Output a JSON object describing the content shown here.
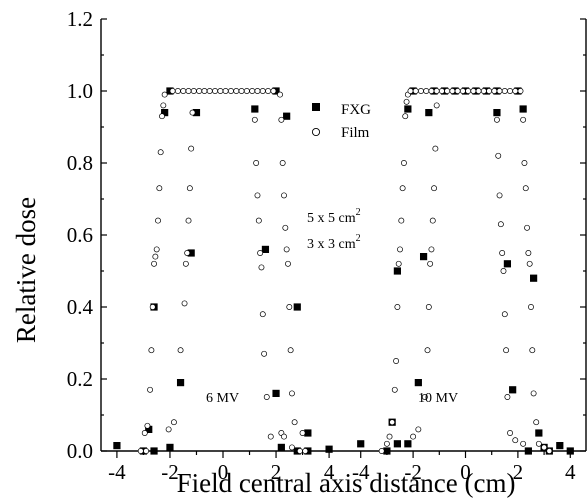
{
  "chart_data": {
    "type": "scatter",
    "xlabel": "Field central axis distance (cm)",
    "ylabel": "Relative dose",
    "ylim": [
      0.0,
      1.2
    ],
    "yticks": [
      "0.0",
      "0.2",
      "0.4",
      "0.6",
      "0.8",
      "1.0",
      "1.2"
    ],
    "yvalues": [
      0.0,
      0.2,
      0.4,
      0.6,
      0.8,
      1.0,
      1.2
    ],
    "panels": [
      {
        "label": "6 MV",
        "xlim": [
          -4.6,
          4.6
        ],
        "xticks": [
          "-4",
          "-2",
          "0",
          "2",
          "4"
        ],
        "xvalues": [
          -4,
          -2,
          0,
          2,
          4
        ],
        "series": [
          {
            "name": "FXG",
            "marker": "square",
            "points": [
              [
                -4.0,
                0.015
              ],
              [
                -3.0,
                0.0
              ],
              [
                -2.6,
                0.0
              ],
              [
                -2.0,
                0.01
              ],
              [
                -2.8,
                0.06
              ],
              [
                -2.6,
                0.4
              ],
              [
                -2.2,
                0.94
              ],
              [
                -2.0,
                1.0
              ],
              [
                -1.6,
                0.19
              ],
              [
                -1.2,
                0.55
              ],
              [
                -1.0,
                0.94
              ],
              [
                1.2,
                0.95
              ],
              [
                1.6,
                0.56
              ],
              [
                2.0,
                0.16
              ],
              [
                2.0,
                1.0
              ],
              [
                2.4,
                0.93
              ],
              [
                2.8,
                0.4
              ],
              [
                2.2,
                0.01
              ],
              [
                3.2,
                0.05
              ],
              [
                2.8,
                0.0
              ],
              [
                3.2,
                0.0
              ],
              [
                4.0,
                0.005
              ]
            ]
          },
          {
            "name": "Film",
            "marker": "circle",
            "points": [
              [
                -3.1,
                0.0
              ],
              [
                -2.9,
                0.0
              ],
              [
                -2.95,
                0.05
              ],
              [
                -2.85,
                0.07
              ],
              [
                -2.75,
                0.17
              ],
              [
                -2.7,
                0.28
              ],
              [
                -2.65,
                0.4
              ],
              [
                -2.6,
                0.52
              ],
              [
                -2.55,
                0.54
              ],
              [
                -2.5,
                0.56
              ],
              [
                -2.45,
                0.64
              ],
              [
                -2.4,
                0.73
              ],
              [
                -2.35,
                0.83
              ],
              [
                -2.3,
                0.93
              ],
              [
                -2.25,
                0.96
              ],
              [
                -2.2,
                0.99
              ],
              [
                -1.9,
                1.0
              ],
              [
                -1.7,
                1.0
              ],
              [
                -1.5,
                1.0
              ],
              [
                -1.3,
                1.0
              ],
              [
                -1.1,
                1.0
              ],
              [
                -0.9,
                1.0
              ],
              [
                -0.7,
                1.0
              ],
              [
                -0.5,
                1.0
              ],
              [
                -0.3,
                1.0
              ],
              [
                -0.1,
                1.0
              ],
              [
                0.1,
                1.0
              ],
              [
                0.3,
                1.0
              ],
              [
                0.5,
                1.0
              ],
              [
                0.7,
                1.0
              ],
              [
                0.9,
                1.0
              ],
              [
                1.1,
                1.0
              ],
              [
                1.3,
                1.0
              ],
              [
                1.5,
                1.0
              ],
              [
                1.7,
                1.0
              ],
              [
                1.9,
                1.0
              ],
              [
                -2.05,
                0.06
              ],
              [
                -1.85,
                0.08
              ],
              [
                -1.6,
                0.28
              ],
              [
                -1.45,
                0.41
              ],
              [
                -1.4,
                0.52
              ],
              [
                -1.35,
                0.55
              ],
              [
                -1.3,
                0.64
              ],
              [
                -1.25,
                0.73
              ],
              [
                -1.2,
                0.84
              ],
              [
                -1.15,
                0.94
              ],
              [
                1.2,
                0.92
              ],
              [
                1.25,
                0.8
              ],
              [
                1.3,
                0.71
              ],
              [
                1.35,
                0.64
              ],
              [
                1.4,
                0.55
              ],
              [
                1.45,
                0.51
              ],
              [
                1.5,
                0.38
              ],
              [
                1.55,
                0.27
              ],
              [
                1.65,
                0.15
              ],
              [
                1.8,
                0.04
              ],
              [
                2.15,
                0.99
              ],
              [
                2.2,
                0.92
              ],
              [
                2.25,
                0.8
              ],
              [
                2.3,
                0.71
              ],
              [
                2.35,
                0.62
              ],
              [
                2.4,
                0.56
              ],
              [
                2.45,
                0.52
              ],
              [
                2.5,
                0.4
              ],
              [
                2.55,
                0.28
              ],
              [
                2.6,
                0.16
              ],
              [
                2.7,
                0.08
              ],
              [
                2.2,
                0.05
              ],
              [
                2.3,
                0.04
              ],
              [
                2.6,
                0.01
              ],
              [
                2.9,
                0.0
              ],
              [
                3.1,
                0.0
              ],
              [
                3.0,
                0.05
              ]
            ]
          }
        ]
      },
      {
        "label": "10 MV",
        "xlim": [
          -4.6,
          4.6
        ],
        "xticks": [
          "-4",
          "-2",
          "0",
          "2",
          "4"
        ],
        "xvalues": [
          -4,
          -2,
          0,
          2,
          4
        ],
        "series": [
          {
            "name": "FXG",
            "marker": "square",
            "points": [
              [
                -4.0,
                0.02
              ],
              [
                -3.0,
                0.0
              ],
              [
                -2.8,
                0.08
              ],
              [
                -2.6,
                0.02
              ],
              [
                -2.2,
                0.02
              ],
              [
                -2.6,
                0.5
              ],
              [
                -2.2,
                0.95
              ],
              [
                -2.0,
                1.0
              ],
              [
                -1.8,
                0.19
              ],
              [
                -1.6,
                0.54
              ],
              [
                -1.4,
                0.94
              ],
              [
                -1.2,
                1.0
              ],
              [
                -0.8,
                1.0
              ],
              [
                -0.4,
                1.0
              ],
              [
                0.0,
                1.0
              ],
              [
                0.4,
                1.0
              ],
              [
                0.8,
                1.0
              ],
              [
                1.2,
                1.0
              ],
              [
                1.2,
                0.94
              ],
              [
                1.6,
                0.52
              ],
              [
                1.8,
                0.17
              ],
              [
                2.0,
                1.0
              ],
              [
                2.2,
                0.95
              ],
              [
                2.6,
                0.48
              ],
              [
                2.4,
                0.0
              ],
              [
                2.8,
                0.05
              ],
              [
                3.0,
                0.01
              ],
              [
                3.2,
                0.0
              ],
              [
                3.6,
                0.015
              ],
              [
                4.0,
                0.0
              ]
            ]
          },
          {
            "name": "Film",
            "marker": "circle",
            "points": [
              [
                -3.2,
                0.0
              ],
              [
                -3.0,
                0.02
              ],
              [
                -2.9,
                0.04
              ],
              [
                -2.8,
                0.08
              ],
              [
                -2.7,
                0.17
              ],
              [
                -2.65,
                0.25
              ],
              [
                -2.6,
                0.4
              ],
              [
                -2.55,
                0.52
              ],
              [
                -2.5,
                0.56
              ],
              [
                -2.45,
                0.64
              ],
              [
                -2.4,
                0.73
              ],
              [
                -2.35,
                0.8
              ],
              [
                -2.3,
                0.93
              ],
              [
                -2.25,
                0.97
              ],
              [
                -2.2,
                0.99
              ],
              [
                -2.1,
                1.0
              ],
              [
                -1.9,
                1.0
              ],
              [
                -1.7,
                1.0
              ],
              [
                -1.5,
                1.0
              ],
              [
                -1.3,
                1.0
              ],
              [
                -1.1,
                1.0
              ],
              [
                -0.9,
                1.0
              ],
              [
                -0.7,
                1.0
              ],
              [
                -0.5,
                1.0
              ],
              [
                -0.3,
                1.0
              ],
              [
                -0.1,
                1.0
              ],
              [
                0.1,
                1.0
              ],
              [
                0.3,
                1.0
              ],
              [
                0.5,
                1.0
              ],
              [
                0.7,
                1.0
              ],
              [
                0.9,
                1.0
              ],
              [
                1.1,
                1.0
              ],
              [
                1.3,
                1.0
              ],
              [
                1.5,
                1.0
              ],
              [
                1.7,
                1.0
              ],
              [
                1.9,
                1.0
              ],
              [
                2.1,
                1.0
              ],
              [
                -2.0,
                0.04
              ],
              [
                -1.8,
                0.06
              ],
              [
                -1.55,
                0.15
              ],
              [
                -1.45,
                0.28
              ],
              [
                -1.4,
                0.4
              ],
              [
                -1.35,
                0.52
              ],
              [
                -1.3,
                0.56
              ],
              [
                -1.25,
                0.64
              ],
              [
                -1.2,
                0.73
              ],
              [
                -1.15,
                0.84
              ],
              [
                -1.1,
                0.96
              ],
              [
                1.2,
                0.92
              ],
              [
                1.25,
                0.82
              ],
              [
                1.3,
                0.71
              ],
              [
                1.35,
                0.63
              ],
              [
                1.4,
                0.55
              ],
              [
                1.45,
                0.5
              ],
              [
                1.5,
                0.38
              ],
              [
                1.55,
                0.28
              ],
              [
                1.6,
                0.15
              ],
              [
                1.7,
                0.05
              ],
              [
                1.9,
                0.03
              ],
              [
                2.2,
                0.92
              ],
              [
                2.25,
                0.8
              ],
              [
                2.3,
                0.73
              ],
              [
                2.35,
                0.62
              ],
              [
                2.4,
                0.55
              ],
              [
                2.45,
                0.52
              ],
              [
                2.5,
                0.4
              ],
              [
                2.55,
                0.28
              ],
              [
                2.6,
                0.16
              ],
              [
                2.7,
                0.08
              ],
              [
                2.8,
                0.02
              ],
              [
                3.0,
                0.01
              ],
              [
                3.2,
                0.0
              ],
              [
                2.2,
                0.02
              ]
            ]
          }
        ]
      }
    ],
    "legend": [
      {
        "name": "FXG",
        "marker": "square"
      },
      {
        "name": "Film",
        "marker": "circle"
      }
    ],
    "annotations": {
      "field1_base": "5 x 5 cm",
      "field1_sup": "2",
      "field2_base": "3 x 3 cm",
      "field2_sup": "2"
    }
  }
}
